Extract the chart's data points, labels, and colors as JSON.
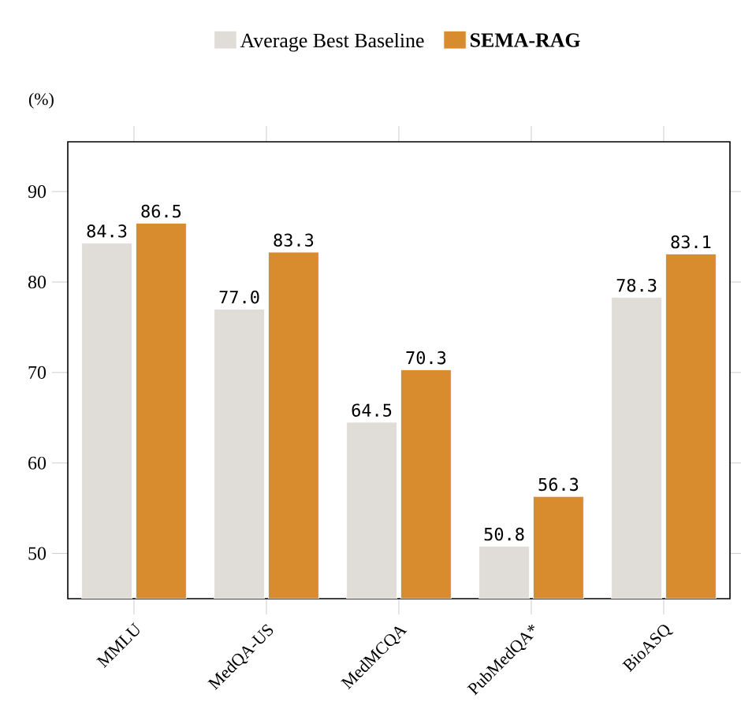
{
  "chart_data": {
    "type": "bar",
    "ylabel": "(%)",
    "categories": [
      "MMLU",
      "MedQA-US",
      "MedMCQA",
      "PubMedQA*",
      "BioASQ"
    ],
    "series": [
      {
        "name": "Average Best Baseline",
        "color": "#e0dcd7",
        "values": [
          84.3,
          77.0,
          64.5,
          50.8,
          78.3
        ],
        "value_labels": [
          "84.3",
          "77.0",
          "64.5",
          "50.8",
          "78.3"
        ]
      },
      {
        "name": "**SEMA-RAG**",
        "color": "#d98c2e",
        "values": [
          86.5,
          83.3,
          70.3,
          56.3,
          83.1
        ],
        "value_labels": [
          "86.5",
          "83.3",
          "70.3",
          "56.3",
          "83.1"
        ]
      }
    ],
    "ylim": [
      45,
      95.5
    ],
    "yticks": [
      50,
      60,
      70,
      80,
      90
    ],
    "legend": "top",
    "grid": false
  }
}
